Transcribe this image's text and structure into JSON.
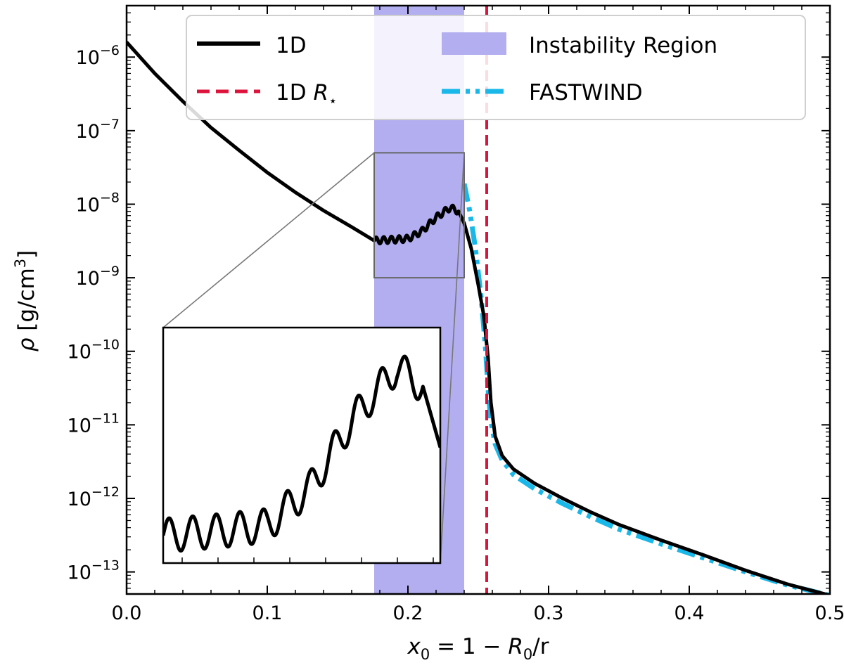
{
  "chart_data": {
    "type": "line",
    "xlabel_parts": {
      "var": "x",
      "sub": "0",
      "eq": " = 1 − ",
      "var2": "R",
      "sub2": "0",
      "tail": "/r"
    },
    "ylabel_parts": {
      "rho": "ρ",
      "unit": " [g/cm",
      "sup": "3",
      "close": "]"
    },
    "xlim": [
      0.0,
      0.5
    ],
    "ylim_log10": [
      -13.3,
      -5.3
    ],
    "yscale": "log",
    "x_ticks": [
      {
        "v": 0.0,
        "label": "0.0"
      },
      {
        "v": 0.1,
        "label": "0.1"
      },
      {
        "v": 0.2,
        "label": "0.2"
      },
      {
        "v": 0.3,
        "label": "0.3"
      },
      {
        "v": 0.4,
        "label": "0.4"
      },
      {
        "v": 0.5,
        "label": "0.5"
      }
    ],
    "y_ticks": [
      {
        "exp": -13,
        "base": "10",
        "sup": "−13"
      },
      {
        "exp": -12,
        "base": "10",
        "sup": "−12"
      },
      {
        "exp": -11,
        "base": "10",
        "sup": "−11"
      },
      {
        "exp": -10,
        "base": "10",
        "sup": "−10"
      },
      {
        "exp": -9,
        "base": "10",
        "sup": "−9"
      },
      {
        "exp": -8,
        "base": "10",
        "sup": "−8"
      },
      {
        "exp": -7,
        "base": "10",
        "sup": "−7"
      },
      {
        "exp": -6,
        "base": "10",
        "sup": "−6"
      }
    ],
    "instability_region": {
      "x": [
        0.176,
        0.24
      ],
      "color": "#b2aef0"
    },
    "stellar_radius": {
      "x": 0.256,
      "color": "#dc143c"
    },
    "series": [
      {
        "name": "1D",
        "color": "#000000",
        "points": [
          [
            0.0,
            1.6e-06
          ],
          [
            0.02,
            6e-07
          ],
          [
            0.04,
            2.5e-07
          ],
          [
            0.06,
            1.1e-07
          ],
          [
            0.08,
            5.4e-08
          ],
          [
            0.1,
            2.7e-08
          ],
          [
            0.12,
            1.45e-08
          ],
          [
            0.14,
            8.2e-09
          ],
          [
            0.16,
            4.9e-09
          ],
          [
            0.176,
            3.2e-09
          ],
          [
            0.19,
            3.3e-09
          ],
          [
            0.2,
            3.4e-09
          ],
          [
            0.21,
            4.3e-09
          ],
          [
            0.22,
            6.6e-09
          ],
          [
            0.23,
            9e-09
          ],
          [
            0.236,
            8e-09
          ],
          [
            0.24,
            5.5e-09
          ],
          [
            0.245,
            2.5e-09
          ],
          [
            0.25,
            8e-10
          ],
          [
            0.254,
            3e-10
          ],
          [
            0.257,
            8e-11
          ],
          [
            0.259,
            2e-11
          ],
          [
            0.262,
            7e-12
          ],
          [
            0.267,
            3.8e-12
          ],
          [
            0.275,
            2.5e-12
          ],
          [
            0.29,
            1.6e-12
          ],
          [
            0.31,
            1e-12
          ],
          [
            0.33,
            6.5e-13
          ],
          [
            0.35,
            4.4e-13
          ],
          [
            0.38,
            2.7e-13
          ],
          [
            0.41,
            1.7e-13
          ],
          [
            0.44,
            1.05e-13
          ],
          [
            0.47,
            6.8e-14
          ],
          [
            0.5,
            4.8e-14
          ]
        ],
        "oscillation": {
          "x_range": [
            0.176,
            0.236
          ],
          "n_cycles": 11,
          "amp_dex": 0.045
        }
      },
      {
        "name": "1D R⋆",
        "color": "#dc143c"
      },
      {
        "name": "FASTWIND",
        "color": "#1ab8e8",
        "points": [
          [
            0.24,
            1.9e-08
          ],
          [
            0.244,
            8e-09
          ],
          [
            0.248,
            2.5e-09
          ],
          [
            0.252,
            5.5e-10
          ],
          [
            0.255,
            1.2e-10
          ],
          [
            0.257,
            3e-11
          ],
          [
            0.259,
            1.1e-11
          ],
          [
            0.262,
            5.5e-12
          ],
          [
            0.267,
            3.3e-12
          ],
          [
            0.275,
            2.1e-12
          ],
          [
            0.29,
            1.35e-12
          ],
          [
            0.31,
            8.5e-13
          ],
          [
            0.33,
            5.6e-13
          ],
          [
            0.35,
            3.8e-13
          ],
          [
            0.38,
            2.4e-13
          ],
          [
            0.41,
            1.55e-13
          ],
          [
            0.44,
            1e-13
          ],
          [
            0.47,
            6.6e-14
          ],
          [
            0.5,
            4.8e-14
          ]
        ]
      }
    ],
    "legend": {
      "placement": "top",
      "entries": [
        {
          "text": "1D",
          "kind": "solid"
        },
        {
          "text": "Instability Region",
          "kind": "patch"
        },
        {
          "text_main": "1D ",
          "text_r": "R",
          "text_sub": "⋆",
          "kind": "dashed"
        },
        {
          "text": "FASTWIND",
          "kind": "dashdot"
        }
      ]
    },
    "inset": {
      "x_range": [
        0.176,
        0.24
      ],
      "y_range": [
        1e-09,
        5e-08
      ]
    }
  }
}
